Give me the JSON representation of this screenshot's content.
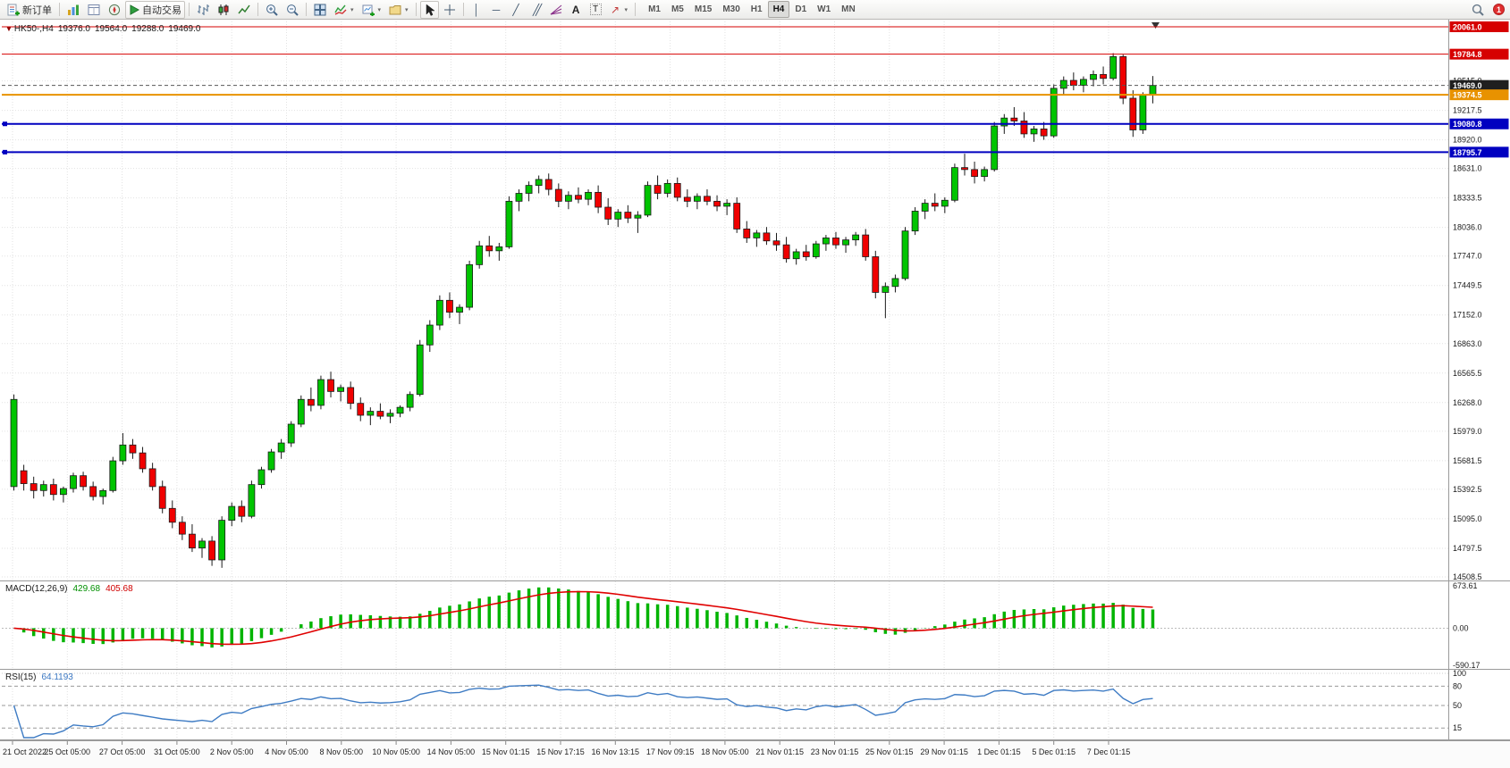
{
  "toolbar": {
    "new_order_label": "新订单",
    "autotrading_label": "自动交易",
    "timeframes": [
      "M1",
      "M5",
      "M15",
      "M30",
      "H1",
      "H4",
      "D1",
      "W1",
      "MN"
    ],
    "active_timeframe": "H4",
    "notification_count": "1"
  },
  "chart": {
    "info": {
      "symbol_period": "HK50-,H4",
      "open": "19376.0",
      "high": "19564.0",
      "low": "19288.0",
      "close": "19469.0"
    },
    "price_axis_labels": [
      "19515.0",
      "19217.5",
      "18920.0",
      "18631.0",
      "18333.5",
      "18036.0",
      "17747.0",
      "17449.5",
      "17152.0",
      "16863.0",
      "16565.5",
      "16268.0",
      "15979.0",
      "15681.5",
      "15392.5",
      "15095.0",
      "14797.5",
      "14508.5"
    ],
    "time_axis_labels": [
      "21 Oct 2022",
      "25 Oct 05:00",
      "27 Oct 05:00",
      "31 Oct 05:00",
      "2 Nov 05:00",
      "4 Nov 05:00",
      "8 Nov 05:00",
      "10 Nov 05:00",
      "14 Nov 05:00",
      "15 Nov 01:15",
      "15 Nov 17:15",
      "16 Nov 13:15",
      "17 Nov 09:15",
      "18 Nov 05:00",
      "21 Nov 01:15",
      "23 Nov 01:15",
      "25 Nov 01:15",
      "29 Nov 01:15",
      "1 Dec 01:15",
      "5 Dec 01:15",
      "7 Dec 01:15"
    ],
    "hlines": [
      {
        "name": "resistance-line-upper",
        "price": 20061.0,
        "label": "20061.0",
        "color": "#D60000",
        "width": 1,
        "dash": "",
        "handle": false
      },
      {
        "name": "resistance-line-lower",
        "price": 19784.8,
        "label": "19784.8",
        "color": "#D60000",
        "width": 1,
        "dash": "",
        "handle": false
      },
      {
        "name": "bid-price-line",
        "price": 19469.0,
        "label": "19469.0",
        "color": "#555555",
        "label_bg": "#1f1f1f",
        "width": 1,
        "dash": "4,3",
        "handle": false
      },
      {
        "name": "orange-level-line",
        "price": 19374.5,
        "label": "19374.5",
        "color": "#E89200",
        "width": 2,
        "dash": "",
        "handle": false
      },
      {
        "name": "support-line-upper",
        "price": 19080.8,
        "label": "19080.8",
        "color": "#0000C0",
        "width": 2,
        "dash": "",
        "handle": true
      },
      {
        "name": "support-line-lower",
        "price": 18795.7,
        "label": "18795.7",
        "color": "#0000C0",
        "width": 2,
        "dash": "",
        "handle": true
      }
    ]
  },
  "macd": {
    "label": "MACD(12,26,9)",
    "value1": "429.68",
    "value2": "405.68",
    "axis_labels": [
      "673.61",
      "0.00",
      "-590.17"
    ],
    "ymax": 673.61,
    "ymin": -590.17
  },
  "rsi": {
    "label": "RSI(15)",
    "value": "64.1193",
    "axis_labels": [
      "100",
      "80",
      "50",
      "15"
    ],
    "levels": [
      80,
      50,
      15
    ],
    "period": 15
  },
  "chart_data": {
    "type": "candlestick",
    "symbol": "HK50-",
    "timeframe": "H4",
    "title": "HK50-,H4",
    "ylim": [
      14508.5,
      20061.0
    ],
    "indicators": [
      {
        "type": "MACD",
        "params": [
          12,
          26,
          9
        ],
        "current": [
          429.68,
          405.68
        ]
      },
      {
        "type": "RSI",
        "params": [
          15
        ],
        "current": 64.1193
      }
    ],
    "colors": {
      "up": "#00C400",
      "down": "#F00000",
      "outline": "#1A1A1A",
      "macd_hist": "#00B400",
      "macd_signal": "#E00000",
      "rsi_line": "#3F7CC4",
      "grid": "#E2E2E2",
      "axis_text": "#1A1A1A"
    },
    "candles": [
      [
        15420,
        16350,
        15380,
        16300
      ],
      [
        15580,
        15640,
        15380,
        15450
      ],
      [
        15450,
        15520,
        15300,
        15380
      ],
      [
        15380,
        15480,
        15320,
        15440
      ],
      [
        15440,
        15500,
        15280,
        15340
      ],
      [
        15340,
        15420,
        15260,
        15400
      ],
      [
        15400,
        15560,
        15360,
        15530
      ],
      [
        15530,
        15570,
        15380,
        15420
      ],
      [
        15420,
        15470,
        15280,
        15320
      ],
      [
        15320,
        15400,
        15240,
        15380
      ],
      [
        15380,
        15720,
        15360,
        15680
      ],
      [
        15680,
        15960,
        15640,
        15840
      ],
      [
        15840,
        15900,
        15700,
        15760
      ],
      [
        15760,
        15820,
        15560,
        15600
      ],
      [
        15600,
        15660,
        15380,
        15420
      ],
      [
        15420,
        15480,
        15150,
        15200
      ],
      [
        15200,
        15280,
        15000,
        15060
      ],
      [
        15060,
        15120,
        14880,
        14940
      ],
      [
        14940,
        15040,
        14760,
        14800
      ],
      [
        14800,
        14900,
        14700,
        14870
      ],
      [
        14870,
        14920,
        14620,
        14680
      ],
      [
        14680,
        15120,
        14600,
        15080
      ],
      [
        15080,
        15260,
        15020,
        15220
      ],
      [
        15220,
        15280,
        15060,
        15120
      ],
      [
        15120,
        15480,
        15100,
        15440
      ],
      [
        15440,
        15620,
        15400,
        15590
      ],
      [
        15590,
        15800,
        15560,
        15770
      ],
      [
        15770,
        15900,
        15700,
        15860
      ],
      [
        15860,
        16080,
        15820,
        16050
      ],
      [
        16050,
        16340,
        16020,
        16300
      ],
      [
        16300,
        16420,
        16180,
        16240
      ],
      [
        16240,
        16540,
        16200,
        16500
      ],
      [
        16500,
        16580,
        16320,
        16380
      ],
      [
        16380,
        16450,
        16280,
        16420
      ],
      [
        16420,
        16480,
        16200,
        16260
      ],
      [
        16260,
        16320,
        16080,
        16140
      ],
      [
        16140,
        16220,
        16040,
        16180
      ],
      [
        16180,
        16260,
        16100,
        16130
      ],
      [
        16130,
        16200,
        16060,
        16160
      ],
      [
        16160,
        16240,
        16120,
        16220
      ],
      [
        16220,
        16380,
        16180,
        16350
      ],
      [
        16350,
        16900,
        16330,
        16850
      ],
      [
        16850,
        17100,
        16780,
        17050
      ],
      [
        17050,
        17350,
        17000,
        17300
      ],
      [
        17300,
        17380,
        17120,
        17180
      ],
      [
        17180,
        17260,
        17060,
        17230
      ],
      [
        17230,
        17700,
        17200,
        17660
      ],
      [
        17660,
        17900,
        17620,
        17850
      ],
      [
        17850,
        17950,
        17740,
        17800
      ],
      [
        17800,
        17880,
        17700,
        17840
      ],
      [
        17840,
        18350,
        17820,
        18300
      ],
      [
        18300,
        18420,
        18200,
        18380
      ],
      [
        18380,
        18500,
        18300,
        18460
      ],
      [
        18460,
        18560,
        18380,
        18520
      ],
      [
        18520,
        18580,
        18360,
        18420
      ],
      [
        18420,
        18480,
        18240,
        18300
      ],
      [
        18300,
        18400,
        18220,
        18360
      ],
      [
        18360,
        18440,
        18280,
        18320
      ],
      [
        18320,
        18420,
        18260,
        18390
      ],
      [
        18390,
        18460,
        18180,
        18240
      ],
      [
        18240,
        18330,
        18060,
        18120
      ],
      [
        18120,
        18220,
        18040,
        18190
      ],
      [
        18190,
        18260,
        18080,
        18130
      ],
      [
        18130,
        18200,
        17980,
        18160
      ],
      [
        18160,
        18500,
        18140,
        18460
      ],
      [
        18460,
        18560,
        18320,
        18380
      ],
      [
        18380,
        18520,
        18340,
        18480
      ],
      [
        18480,
        18540,
        18300,
        18340
      ],
      [
        18340,
        18420,
        18240,
        18300
      ],
      [
        18300,
        18380,
        18220,
        18350
      ],
      [
        18350,
        18420,
        18260,
        18300
      ],
      [
        18300,
        18360,
        18200,
        18250
      ],
      [
        18250,
        18320,
        18160,
        18280
      ],
      [
        18280,
        18340,
        17980,
        18020
      ],
      [
        18020,
        18100,
        17880,
        17930
      ],
      [
        17930,
        18010,
        17840,
        17980
      ],
      [
        17980,
        18040,
        17860,
        17900
      ],
      [
        17900,
        17980,
        17800,
        17860
      ],
      [
        17860,
        17940,
        17680,
        17720
      ],
      [
        17720,
        17820,
        17660,
        17790
      ],
      [
        17790,
        17860,
        17700,
        17740
      ],
      [
        17740,
        17900,
        17720,
        17870
      ],
      [
        17870,
        17960,
        17800,
        17930
      ],
      [
        17930,
        17990,
        17820,
        17860
      ],
      [
        17860,
        17940,
        17780,
        17910
      ],
      [
        17910,
        17990,
        17850,
        17960
      ],
      [
        17960,
        18020,
        17700,
        17740
      ],
      [
        17740,
        17800,
        17320,
        17380
      ],
      [
        17380,
        17480,
        17120,
        17440
      ],
      [
        17440,
        17560,
        17380,
        17520
      ],
      [
        17520,
        18040,
        17500,
        18000
      ],
      [
        18000,
        18240,
        17960,
        18200
      ],
      [
        18200,
        18320,
        18120,
        18280
      ],
      [
        18280,
        18380,
        18200,
        18250
      ],
      [
        18250,
        18340,
        18180,
        18310
      ],
      [
        18310,
        18680,
        18290,
        18640
      ],
      [
        18640,
        18780,
        18560,
        18620
      ],
      [
        18620,
        18700,
        18480,
        18550
      ],
      [
        18550,
        18650,
        18500,
        18620
      ],
      [
        18620,
        19100,
        18600,
        19060
      ],
      [
        19060,
        19180,
        18980,
        19140
      ],
      [
        19140,
        19250,
        19060,
        19110
      ],
      [
        19110,
        19200,
        18940,
        18980
      ],
      [
        18980,
        19060,
        18900,
        19030
      ],
      [
        19030,
        19100,
        18920,
        18960
      ],
      [
        18960,
        19480,
        18940,
        19440
      ],
      [
        19440,
        19560,
        19380,
        19520
      ],
      [
        19520,
        19600,
        19420,
        19470
      ],
      [
        19470,
        19560,
        19400,
        19530
      ],
      [
        19530,
        19620,
        19460,
        19580
      ],
      [
        19580,
        19660,
        19480,
        19540
      ],
      [
        19540,
        19795,
        19520,
        19760
      ],
      [
        19760,
        19780,
        19280,
        19340
      ],
      [
        19340,
        19420,
        18950,
        19020
      ],
      [
        19020,
        19400,
        18980,
        19370
      ],
      [
        19376,
        19564,
        19288,
        19469
      ]
    ]
  }
}
